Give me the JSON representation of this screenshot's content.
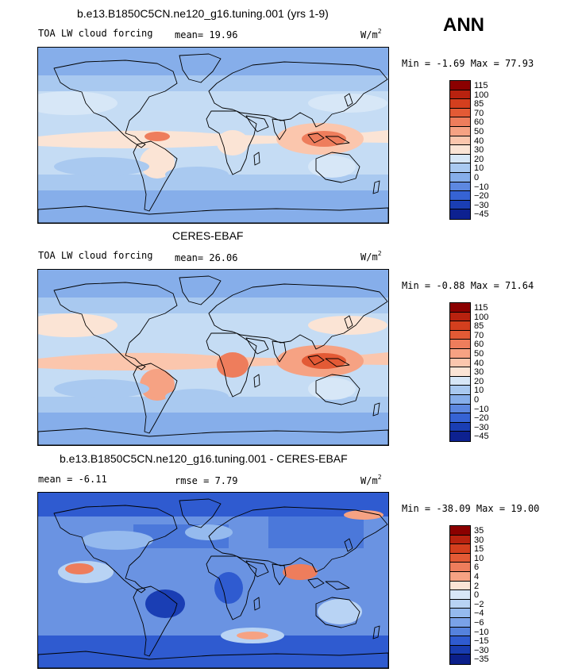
{
  "season": "ANN",
  "panels": [
    {
      "title": "b.e13.B1850C5CN.ne120_g16.tuning.001 (yrs 1-9)",
      "left_label": "TOA LW cloud forcing",
      "stat1": "mean=  19.96",
      "stat2": "",
      "unit": "W/m",
      "unit_exp": "2",
      "minmax": "Min =  -1.69 Max =  77.93",
      "scale": "full",
      "levels": [
        "115",
        "100",
        "85",
        "70",
        "60",
        "50",
        "40",
        "30",
        "20",
        "10",
        "0",
        "-10",
        "-20",
        "-30",
        "-45"
      ]
    },
    {
      "title": "CERES-EBAF",
      "left_label": "TOA LW cloud forcing",
      "stat1": "mean=  26.06",
      "stat2": "",
      "unit": "W/m",
      "unit_exp": "2",
      "minmax": "Min =  -0.88 Max =  71.64",
      "scale": "full",
      "levels": [
        "115",
        "100",
        "85",
        "70",
        "60",
        "50",
        "40",
        "30",
        "20",
        "10",
        "0",
        "-10",
        "-20",
        "-30",
        "-45"
      ]
    },
    {
      "title": "b.e13.B1850C5CN.ne120_g16.tuning.001 - CERES-EBAF",
      "left_label": "mean =  -6.11",
      "stat1": "rmse =   7.79",
      "stat2": "",
      "unit": "W/m",
      "unit_exp": "2",
      "minmax": "Min = -38.09 Max =  19.00",
      "scale": "diff",
      "levels": [
        "35",
        "30",
        "15",
        "10",
        "6",
        "4",
        "2",
        "0",
        "-2",
        "-4",
        "-6",
        "-10",
        "-15",
        "-30",
        "-35"
      ]
    }
  ],
  "colors": {
    "full": [
      "#8b0000",
      "#b8220f",
      "#d43f1e",
      "#e35a35",
      "#ee7d5c",
      "#f6a283",
      "#fbc6ad",
      "#fbe4d5",
      "#d7e7f7",
      "#a9c9f0",
      "#86aeea",
      "#5d88e0",
      "#3663d4",
      "#1a3eb4",
      "#0d2190"
    ],
    "diff": [
      "#8b0000",
      "#b8220f",
      "#d43f1e",
      "#e35a35",
      "#ee7d5c",
      "#f6a283",
      "#fbe4d5",
      "#d7e7f7",
      "#b8d3f4",
      "#95baee",
      "#7aa2e8",
      "#5582dd",
      "#2f5bd0",
      "#183cb0",
      "#0b1f8a"
    ]
  }
}
